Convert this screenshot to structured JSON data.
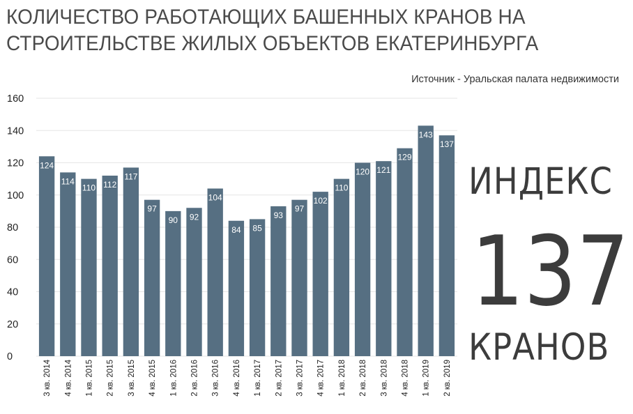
{
  "title_line1": "КОЛИЧЕСТВО РАБОТАЮЩИХ БАШЕННЫХ КРАНОВ НА",
  "title_line2": "СТРОИТЕЛЬСТВЕ ЖИЛЫХ ОБЪЕКТОВ ЕКАТЕРИНБУРГА",
  "source": "Источник - Уральская палата недвижимости",
  "index": {
    "word": "ИНДЕКС",
    "value": "137",
    "unit": "КРАНОВ"
  },
  "colors": {
    "bar": "#566f82",
    "label": "#ffffff",
    "grid": "#e6e6e6",
    "text": "#3c3c3c"
  },
  "chart_data": {
    "type": "bar",
    "categories": [
      "3 кв. 2014",
      "4 кв. 2014",
      "1 кв. 2015",
      "2 кв. 2015",
      "3 кв. 2015",
      "4 кв. 2015",
      "1 кв. 2016",
      "2 кв. 2016",
      "3 кв. 2016",
      "4 кв. 2016",
      "1 кв. 2017",
      "2 кв. 2017",
      "3 кв. 2017",
      "4 кв. 2017",
      "1 кв. 2018",
      "2 кв. 2018",
      "3 кв. 2018",
      "4 кв. 2018",
      "1 кв. 2019",
      "2 кв. 2019"
    ],
    "values": [
      124,
      114,
      110,
      112,
      117,
      97,
      90,
      92,
      104,
      84,
      85,
      93,
      97,
      102,
      110,
      120,
      121,
      129,
      143,
      137
    ],
    "yticks": [
      0,
      20,
      40,
      60,
      80,
      100,
      120,
      140,
      160
    ],
    "ylim": [
      0,
      160
    ],
    "data_labels": true,
    "grid": true,
    "legend": "none"
  }
}
